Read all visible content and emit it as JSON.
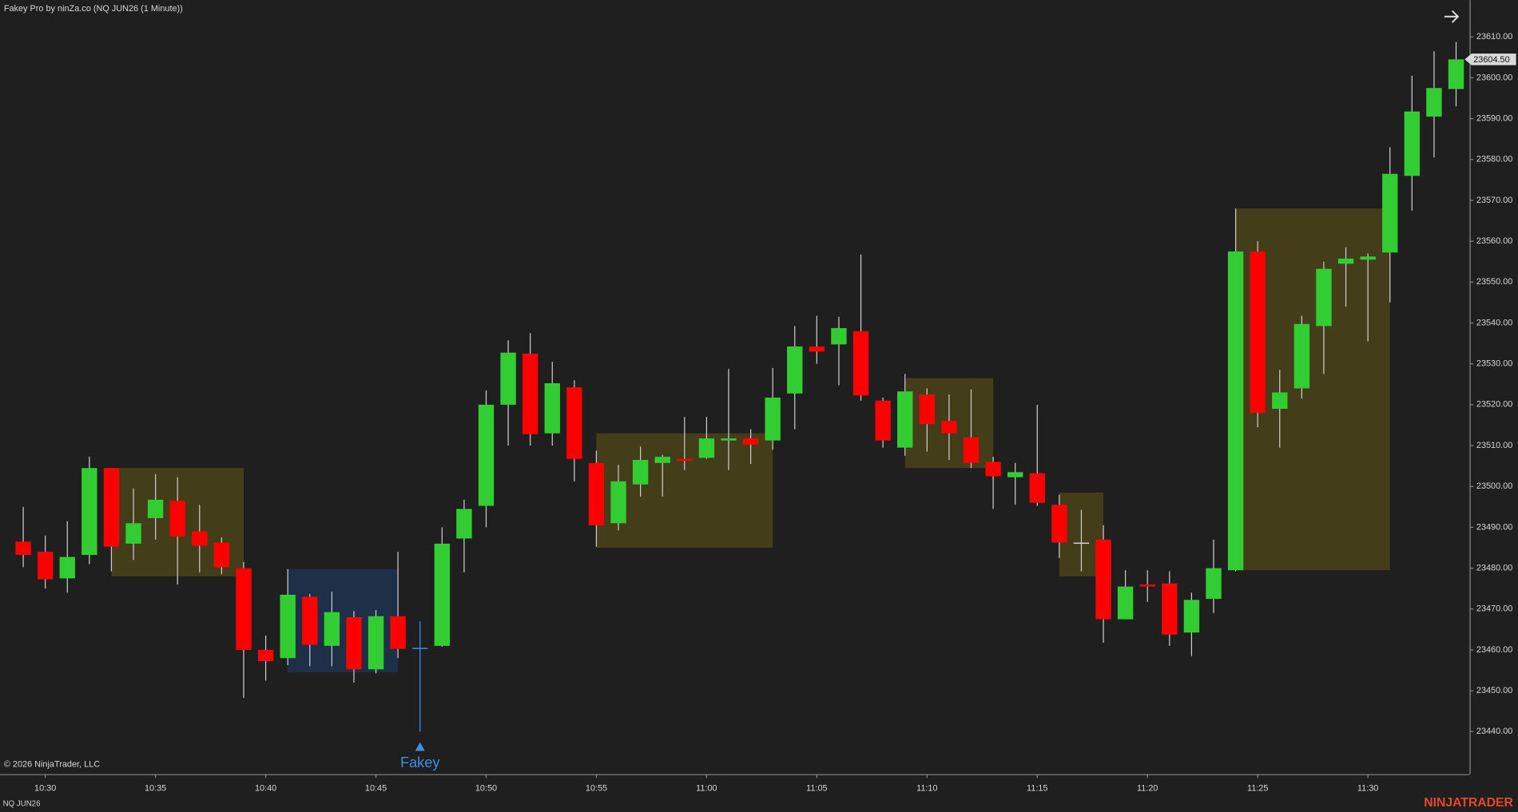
{
  "chart_data": {
    "type": "candlestick",
    "title": "Fakey Pro by ninZa.co (NQ JUN26 (1 Minute))",
    "instrument": "NQ JUN26",
    "copyright": "© 2026 NinjaTrader, LLC",
    "brand": "NINJATRADER",
    "categories": [
      null,
      "10:30",
      null,
      null,
      null,
      null,
      "10:35",
      null,
      null,
      null,
      null,
      "10:40",
      null,
      null,
      null,
      null,
      "10:45",
      null,
      null,
      null,
      null,
      "10:50",
      null,
      null,
      null,
      null,
      "10:55",
      null,
      null,
      null,
      null,
      "11:00",
      null,
      null,
      null,
      null,
      "11:05",
      null,
      null,
      null,
      null,
      "11:10",
      null,
      null,
      null,
      null,
      "11:15",
      null,
      null,
      null,
      null,
      "11:20",
      null,
      null,
      null,
      null,
      "11:25",
      null,
      null,
      null,
      null,
      "11:30",
      null,
      null,
      null,
      null
    ],
    "series": [
      {
        "up_color": "#32cd32",
        "down_color": "#ff0000",
        "doji_color": "#d8d8d8",
        "wick_color": "#cfcfcf",
        "open": [
          23486.5,
          23484,
          23477.5,
          23483.25,
          23504.5,
          23486,
          23492.25,
          23496.5,
          23489,
          23486.25,
          23480,
          23460,
          23458,
          23473,
          23461,
          23468,
          23455.25,
          23468.25,
          23460.5,
          23461,
          23487.25,
          23495.25,
          23520,
          23532.5,
          23513,
          23524.25,
          23505.75,
          23491,
          23500.5,
          23505.75,
          23506.75,
          23507,
          23511.25,
          23511.75,
          23511.25,
          23522.75,
          23534.25,
          23534.75,
          23538,
          23521,
          23509.5,
          23522.5,
          23516,
          23512,
          23506,
          23502.25,
          23503.25,
          23495.5,
          23486.25,
          23487,
          23467.5,
          23476,
          23476.25,
          23464.25,
          23472.5,
          23479.5,
          23557.5,
          23519,
          23524,
          23539.25,
          23554.5,
          23555.5,
          23557.25,
          23576,
          23590.5,
          23597.25
        ],
        "high": [
          23495,
          23488,
          23491.5,
          23507.25,
          23504.5,
          23499.5,
          23503,
          23502.25,
          23495.5,
          23487.5,
          23481.5,
          23463.5,
          23479.75,
          23473.75,
          23474.25,
          23469.5,
          23469.75,
          23484,
          23467,
          23490,
          23496.75,
          23523.5,
          23535.75,
          23537.5,
          23530.5,
          23526,
          23508.75,
          23505.25,
          23509.75,
          23507.75,
          23517,
          23517,
          23528.75,
          23514,
          23529,
          23539.25,
          23541.75,
          23541.5,
          23556.75,
          23521.75,
          23527.5,
          23524,
          23522.5,
          23523.75,
          23507.25,
          23505.75,
          23520,
          23498,
          23494.25,
          23490.5,
          23479.5,
          23479.5,
          23479.25,
          23474,
          23487,
          23568,
          23560,
          23528.5,
          23541.75,
          23555,
          23558.5,
          23557,
          23583,
          23600.5,
          23606.5,
          23608.75
        ],
        "low": [
          23480.25,
          23475,
          23474,
          23481,
          23479.25,
          23482,
          23487,
          23476,
          23479,
          23478.5,
          23448.25,
          23452.5,
          23456.25,
          23456,
          23456,
          23452,
          23454.25,
          23458,
          23440,
          23460.75,
          23479,
          23490,
          23510,
          23510,
          23510,
          23501.25,
          23485.25,
          23489.25,
          23497.5,
          23497.5,
          23504,
          23506.75,
          23504,
          23505.5,
          23509,
          23514,
          23530,
          23524.75,
          23521,
          23509.5,
          23507.5,
          23508.5,
          23506.5,
          23504.5,
          23494.5,
          23495.5,
          23495.25,
          23482.5,
          23479.25,
          23461.75,
          23467.5,
          23471.75,
          23461,
          23458.5,
          23469,
          23479.25,
          23514.5,
          23509.5,
          23521.5,
          23527.5,
          23544,
          23535.5,
          23545,
          23567.5,
          23580.5,
          23593
        ],
        "close": [
          23483.25,
          23477.25,
          23482.75,
          23504.5,
          23485.25,
          23491,
          23496.75,
          23487.75,
          23485.5,
          23480.25,
          23460,
          23457.25,
          23473.5,
          23461.25,
          23469.25,
          23455.25,
          23468.25,
          23460.25,
          23460.5,
          23486,
          23494.5,
          23520,
          23532.75,
          23512.75,
          23525.25,
          23506.75,
          23490.5,
          23501.25,
          23506.5,
          23507.25,
          23506.25,
          23511.75,
          23511.75,
          23510.25,
          23521.75,
          23534.25,
          23533,
          23538.75,
          23522.25,
          23511.25,
          23523.25,
          23515.25,
          23513,
          23505.75,
          23502.5,
          23503.5,
          23496,
          23486.25,
          23486.25,
          23467.5,
          23475.5,
          23475.5,
          23463.75,
          23472.25,
          23480,
          23557.5,
          23518,
          23523,
          23539.75,
          23553.25,
          23555.75,
          23556.25,
          23576.5,
          23591.75,
          23597.5,
          23604.5
        ]
      }
    ],
    "zones": [
      {
        "start": 4,
        "end": 10,
        "top": 23504.5,
        "bottom": 23478,
        "color": "#4a4419"
      },
      {
        "start": 12,
        "end": 17,
        "top": 23479.75,
        "bottom": 23454.5,
        "color": "#1e3350"
      },
      {
        "start": 26,
        "end": 34,
        "top": 23513,
        "bottom": 23485,
        "color": "#4a4419"
      },
      {
        "start": 40,
        "end": 44,
        "top": 23526.5,
        "bottom": 23504.5,
        "color": "#4a4419"
      },
      {
        "start": 47,
        "end": 49,
        "top": 23498.5,
        "bottom": 23478,
        "color": "#4a4419"
      },
      {
        "start": 55,
        "end": 62,
        "top": 23568,
        "bottom": 23479.5,
        "color": "#4a4419"
      }
    ],
    "signals": [
      {
        "index": 18,
        "label": "Fakey",
        "color": "#3d8fe6"
      }
    ],
    "last_price": {
      "value": 23604.5,
      "label": "23604.50"
    },
    "ylim": [
      23429.6,
      23619
    ],
    "yticks": [
      {
        "value": 23440,
        "label": "23440.00"
      },
      {
        "value": 23450,
        "label": "23450.00"
      },
      {
        "value": 23460,
        "label": "23460.00"
      },
      {
        "value": 23470,
        "label": "23470.00"
      },
      {
        "value": 23480,
        "label": "23480.00"
      },
      {
        "value": 23490,
        "label": "23490.00"
      },
      {
        "value": 23500,
        "label": "23500.00"
      },
      {
        "value": 23510,
        "label": "23510.00"
      },
      {
        "value": 23520,
        "label": "23520.00"
      },
      {
        "value": 23530,
        "label": "23530.00"
      },
      {
        "value": 23540,
        "label": "23540.00"
      },
      {
        "value": 23550,
        "label": "23550.00"
      },
      {
        "value": 23560,
        "label": "23560.00"
      },
      {
        "value": 23570,
        "label": "23570.00"
      },
      {
        "value": 23580,
        "label": "23580.00"
      },
      {
        "value": 23590,
        "label": "23590.00"
      },
      {
        "value": 23600,
        "label": "23600.00"
      },
      {
        "value": 23610,
        "label": "23610.00"
      }
    ]
  }
}
